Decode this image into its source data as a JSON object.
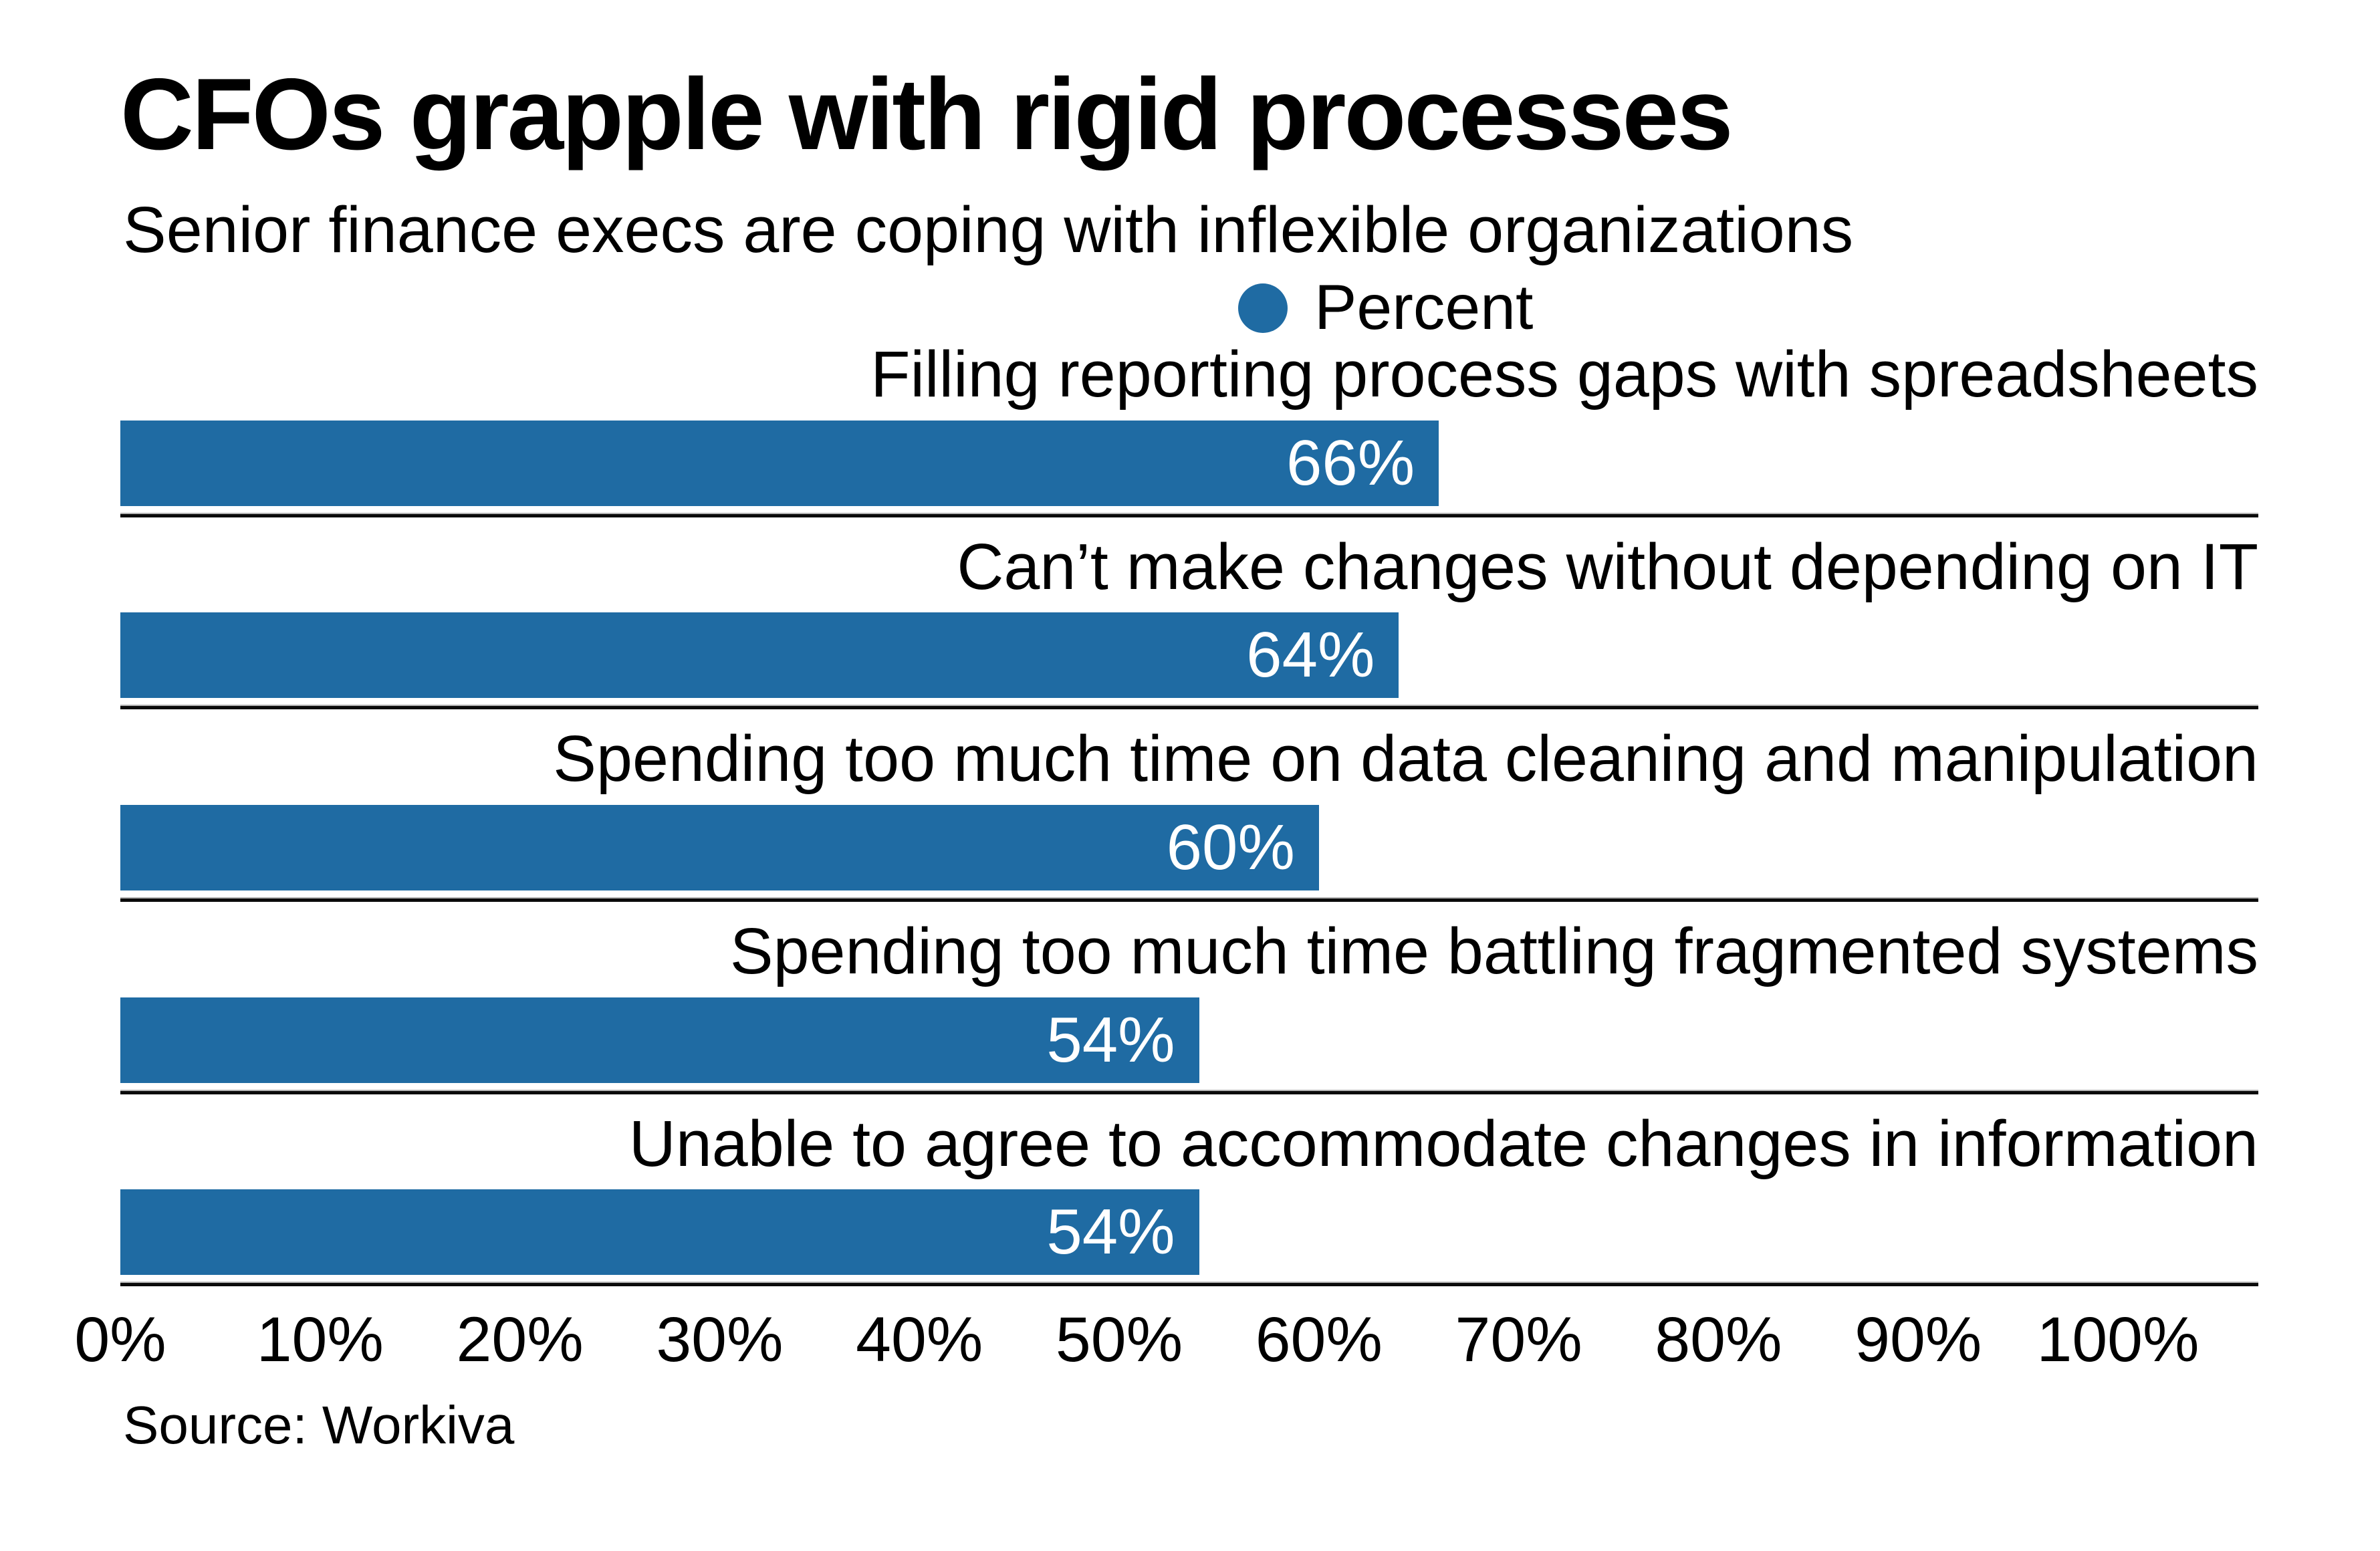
{
  "chart_data": {
    "type": "bar",
    "orientation": "horizontal",
    "title": "CFOs grapple with rigid processes",
    "subtitle": "Senior finance execs are coping with inflexible organizations",
    "legend": {
      "position": "top-center",
      "label": "Percent"
    },
    "categories": [
      "Filling reporting process gaps with spreadsheets",
      "Can’t make changes without depending on IT",
      "Spending too much time on data cleaning and manipulation",
      "Spending too much time battling fragmented systems",
      "Unable to agree to accommodate changes in information"
    ],
    "values": [
      66,
      64,
      60,
      54,
      54
    ],
    "value_labels": [
      "66%",
      "64%",
      "60%",
      "54%",
      "54%"
    ],
    "x_ticks": [
      "0%",
      "10%",
      "20%",
      "30%",
      "40%",
      "50%",
      "60%",
      "70%",
      "80%",
      "90%",
      "100%"
    ],
    "xlim": [
      0,
      100
    ],
    "grid": false,
    "value_labels_inside_bar": true,
    "source": "Source: Workiva",
    "colors": {
      "bar": "#1f6ba3",
      "value_label": "#ffffff",
      "text": "#000000",
      "separator": "#0a0a0a"
    }
  }
}
